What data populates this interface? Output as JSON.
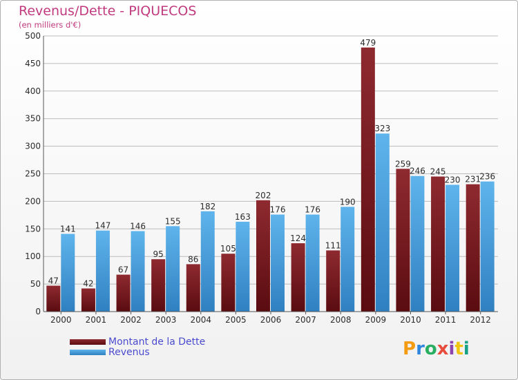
{
  "title": "Revenus/Dette - PIQUECOS",
  "subtitle": "(en milliers d'€)",
  "colors": {
    "title": "#c13a7e",
    "dette": "#7a1a1f",
    "revenus": "#4aa3df",
    "legend_text": "#4a4ad0",
    "grid": "#bbbbbb"
  },
  "legend": [
    {
      "label": "Montant de la Dette",
      "series": 0
    },
    {
      "label": "Revenus",
      "series": 1
    }
  ],
  "logo": {
    "text": "Proxiti",
    "colors": [
      "#f39c12",
      "#2e86de",
      "#27ae60",
      "#e74c3c",
      "#8e44ad",
      "#f1c40f",
      "#16a085"
    ]
  },
  "chart_data": {
    "type": "bar",
    "categories": [
      "2000",
      "2001",
      "2002",
      "2003",
      "2004",
      "2005",
      "2006",
      "2007",
      "2008",
      "2009",
      "2010",
      "2011",
      "2012"
    ],
    "series": [
      {
        "name": "Montant de la Dette",
        "values": [
          47,
          42,
          67,
          95,
          86,
          105,
          202,
          124,
          111,
          479,
          259,
          245,
          231
        ]
      },
      {
        "name": "Revenus",
        "values": [
          141,
          147,
          146,
          155,
          182,
          163,
          176,
          176,
          190,
          323,
          246,
          230,
          236
        ]
      }
    ],
    "yticks": [
      0,
      50,
      100,
      150,
      200,
      250,
      300,
      350,
      400,
      450,
      500
    ],
    "ylim": [
      0,
      500
    ],
    "grid": true,
    "legend_position": "bottom-left"
  }
}
